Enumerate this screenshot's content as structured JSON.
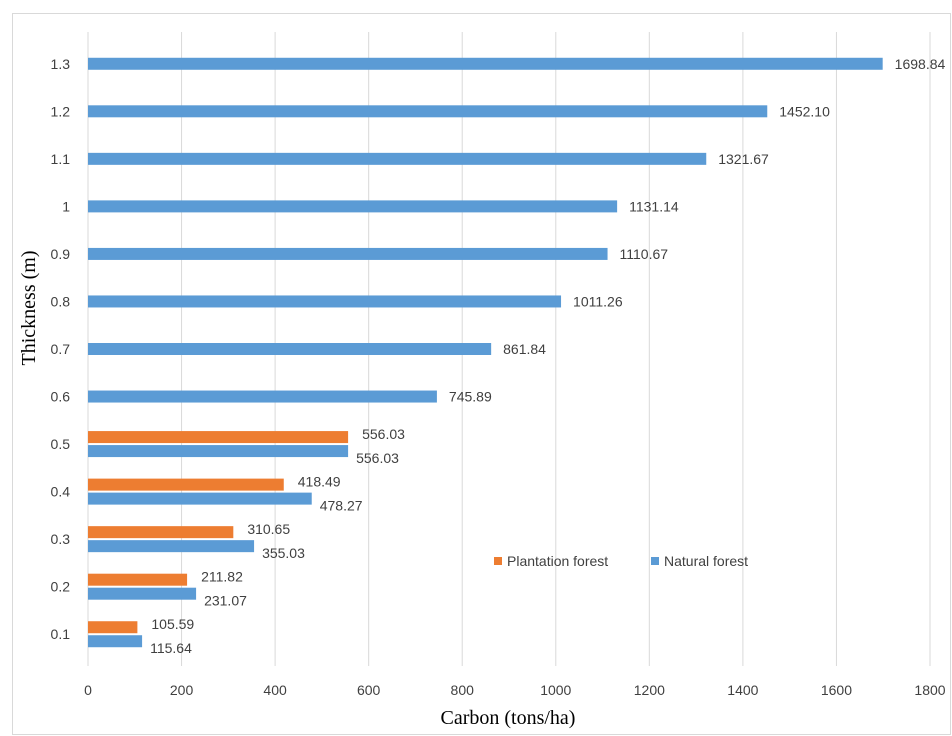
{
  "chart_data": {
    "type": "bar",
    "orientation": "horizontal",
    "categories": [
      "0.1",
      "0.2",
      "0.3",
      "0.4",
      "0.5",
      "0.6",
      "0.7",
      "0.8",
      "0.9",
      "1",
      "1.1",
      "1.2",
      "1.3"
    ],
    "series": [
      {
        "name": "Plantation forest",
        "color": "#ED7D31",
        "values": [
          105.59,
          211.82,
          310.65,
          418.49,
          556.03,
          null,
          null,
          null,
          null,
          null,
          null,
          null,
          null
        ],
        "labels": [
          "105.59",
          "211.82",
          "310.65",
          "418.49",
          "556.03",
          "",
          "",
          "",
          "",
          "",
          "",
          "",
          ""
        ]
      },
      {
        "name": "Natural forest",
        "color": "#5B9BD5",
        "values": [
          115.64,
          231.07,
          355.03,
          478.27,
          556.03,
          745.89,
          861.84,
          1011.26,
          1110.67,
          1131.14,
          1321.67,
          1452.1,
          1698.84
        ],
        "labels": [
          "115.64",
          "231.07",
          "355.03",
          "478.27",
          "556.03",
          "745.89",
          "861.84",
          "1011.26",
          "1110.67",
          "1131.14",
          "1321.67",
          "1452.10",
          "1698.84"
        ]
      }
    ],
    "xlabel": "Carbon (tons/ha)",
    "ylabel": "Thickness (m)",
    "xlim": [
      0,
      1800
    ],
    "xticks": [
      "0",
      "200",
      "400",
      "600",
      "800",
      "1000",
      "1200",
      "1400",
      "1600",
      "1800"
    ],
    "grid": true,
    "legend": "center-right"
  }
}
